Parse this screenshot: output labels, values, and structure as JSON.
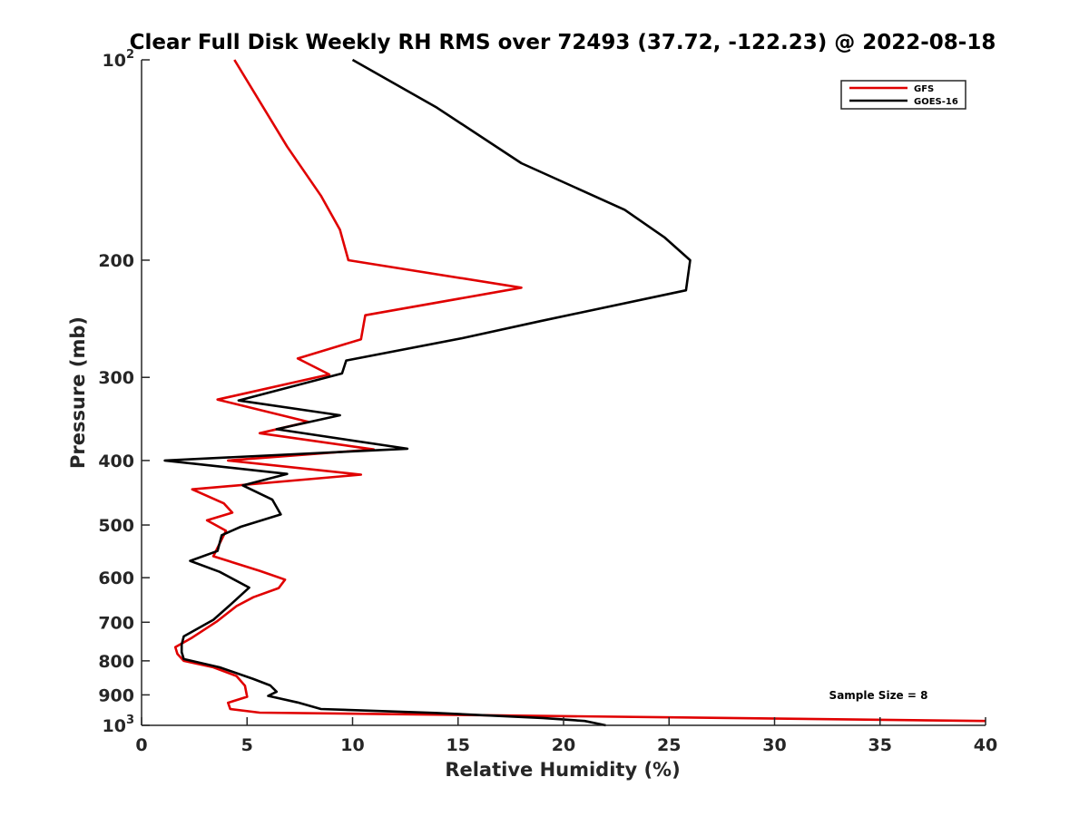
{
  "chart_data": {
    "type": "line",
    "title": "Clear Full Disk Weekly RH RMS over 72493 (37.72, -122.23) @ 2022-08-18",
    "xlabel": "Relative Humidity (%)",
    "ylabel": "Pressure (mb)",
    "xlim": [
      0,
      40
    ],
    "ylim": [
      100,
      1000
    ],
    "y_scale": "log",
    "y_reversed": true,
    "x_ticks": [
      "0",
      "5",
      "10",
      "15",
      "20",
      "25",
      "30",
      "35",
      "40"
    ],
    "y_ticks": [
      {
        "value": 100,
        "label": "10",
        "sup": "2"
      },
      {
        "value": 200,
        "label": "200",
        "sup": ""
      },
      {
        "value": 300,
        "label": "300",
        "sup": ""
      },
      {
        "value": 400,
        "label": "400",
        "sup": ""
      },
      {
        "value": 500,
        "label": "500",
        "sup": ""
      },
      {
        "value": 600,
        "label": "600",
        "sup": ""
      },
      {
        "value": 700,
        "label": "700",
        "sup": ""
      },
      {
        "value": 800,
        "label": "800",
        "sup": ""
      },
      {
        "value": 900,
        "label": "900",
        "sup": ""
      },
      {
        "value": 1000,
        "label": "10",
        "sup": "3"
      }
    ],
    "legend_position": "top-right",
    "annotation": "Sample Size = 8",
    "series": [
      {
        "name": "GFS",
        "color": "#e00000",
        "points": [
          [
            4.4,
            100
          ],
          [
            6.9,
            135
          ],
          [
            8.5,
            160
          ],
          [
            9.4,
            180
          ],
          [
            9.8,
            200
          ],
          [
            18.0,
            220
          ],
          [
            10.6,
            242
          ],
          [
            10.4,
            263
          ],
          [
            7.4,
            281
          ],
          [
            8.9,
            297
          ],
          [
            3.6,
            324
          ],
          [
            7.9,
            350
          ],
          [
            5.6,
            364
          ],
          [
            11.0,
            385
          ],
          [
            4.1,
            400
          ],
          [
            10.4,
            420
          ],
          [
            2.4,
            442
          ],
          [
            3.9,
            464
          ],
          [
            4.3,
            479
          ],
          [
            3.1,
            492
          ],
          [
            4.0,
            510
          ],
          [
            3.4,
            557
          ],
          [
            5.6,
            586
          ],
          [
            6.8,
            604
          ],
          [
            6.5,
            622
          ],
          [
            5.3,
            642
          ],
          [
            4.5,
            662
          ],
          [
            3.6,
            697
          ],
          [
            2.4,
            738
          ],
          [
            1.6,
            763
          ],
          [
            1.7,
            781
          ],
          [
            2.0,
            800
          ],
          [
            3.4,
            818
          ],
          [
            4.5,
            843
          ],
          [
            4.9,
            872
          ],
          [
            5.0,
            906
          ],
          [
            4.1,
            925
          ],
          [
            4.2,
            945
          ],
          [
            5.6,
            957
          ],
          [
            40.0,
            985
          ]
        ]
      },
      {
        "name": "GOES-16",
        "color": "#000000",
        "points": [
          [
            10.0,
            100
          ],
          [
            14.0,
            118
          ],
          [
            18.0,
            143
          ],
          [
            22.9,
            168
          ],
          [
            24.8,
            185
          ],
          [
            26.0,
            200
          ],
          [
            25.8,
            222
          ],
          [
            18.9,
            247
          ],
          [
            15.2,
            262
          ],
          [
            9.7,
            283
          ],
          [
            9.5,
            296
          ],
          [
            4.6,
            325
          ],
          [
            9.4,
            342
          ],
          [
            6.4,
            359
          ],
          [
            12.6,
            384
          ],
          [
            1.1,
            400
          ],
          [
            6.9,
            419
          ],
          [
            4.8,
            436
          ],
          [
            6.2,
            458
          ],
          [
            6.6,
            482
          ],
          [
            4.7,
            503
          ],
          [
            3.8,
            518
          ],
          [
            3.6,
            547
          ],
          [
            2.3,
            566
          ],
          [
            3.7,
            588
          ],
          [
            5.1,
            621
          ],
          [
            4.3,
            655
          ],
          [
            3.4,
            694
          ],
          [
            2.0,
            735
          ],
          [
            1.9,
            756
          ],
          [
            1.9,
            776
          ],
          [
            2.0,
            795
          ],
          [
            3.7,
            818
          ],
          [
            5.3,
            852
          ],
          [
            6.1,
            871
          ],
          [
            6.4,
            890
          ],
          [
            6.0,
            903
          ],
          [
            7.4,
            924
          ],
          [
            8.5,
            945
          ],
          [
            13.9,
            958
          ],
          [
            19.0,
            975
          ],
          [
            21.0,
            985
          ],
          [
            22.0,
            1000
          ]
        ]
      }
    ]
  }
}
